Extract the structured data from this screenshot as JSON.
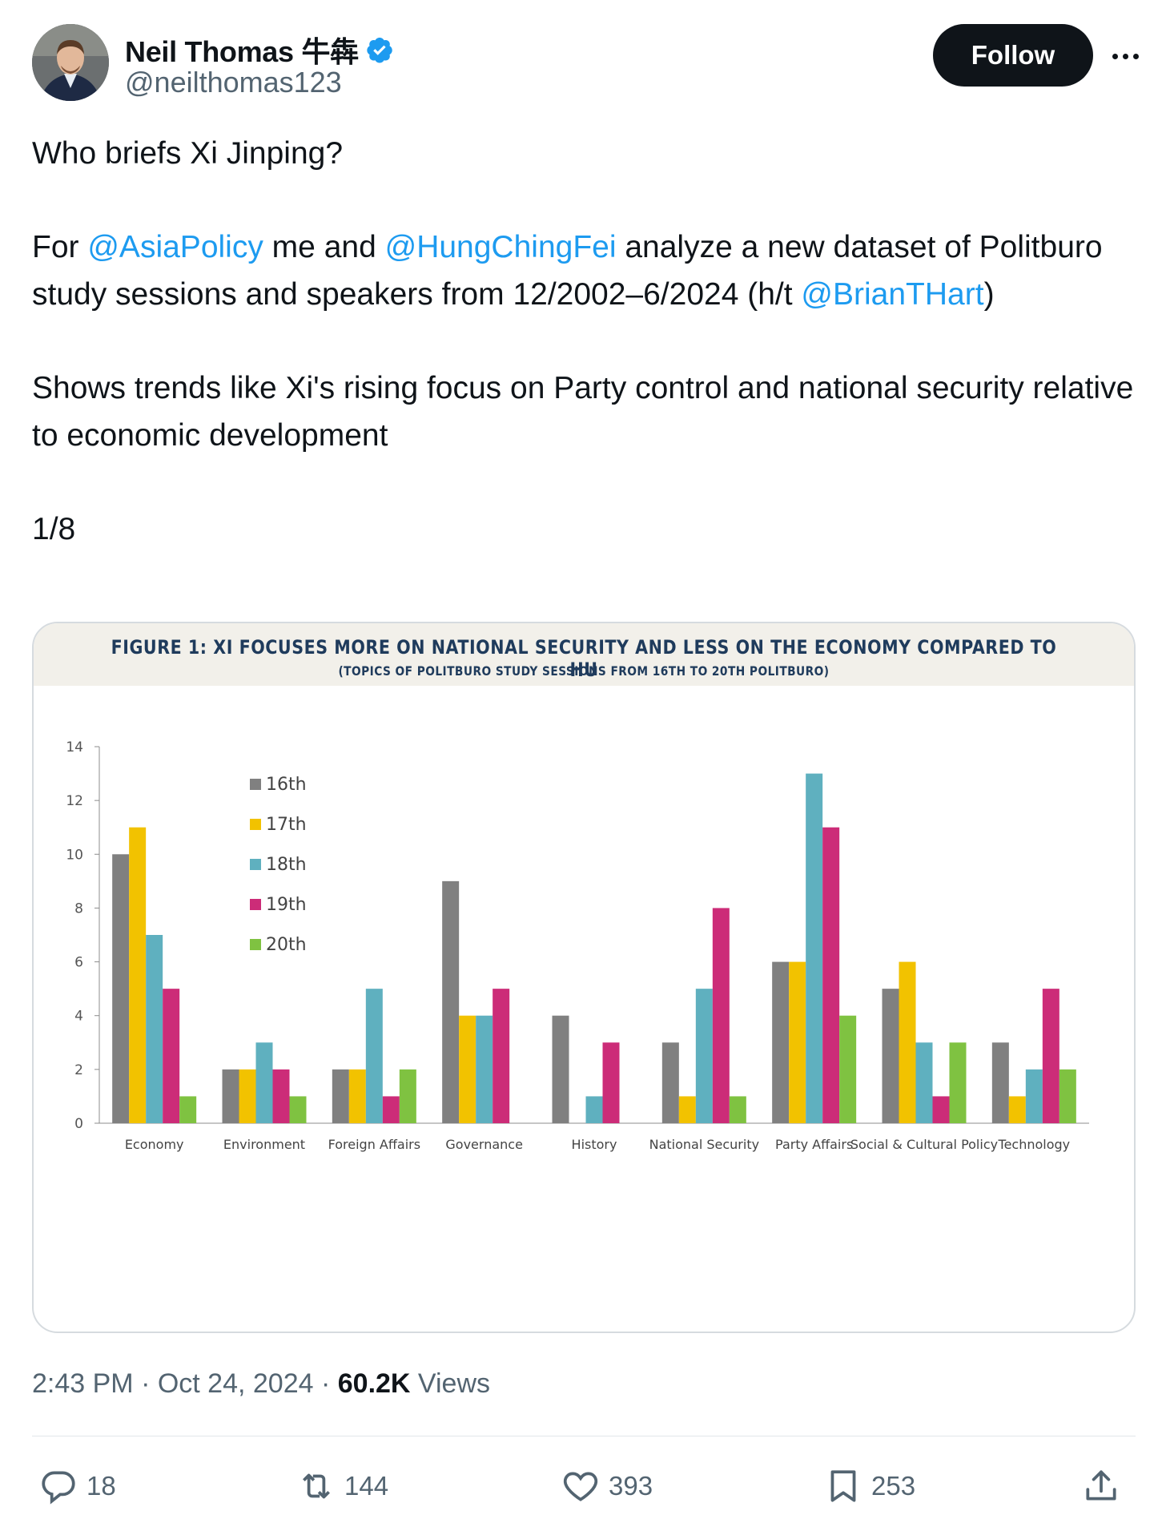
{
  "author": {
    "display_name": "Neil Thomas 牛犇",
    "handle": "@neilthomas123",
    "verified": true
  },
  "follow_label": "Follow",
  "tweet": {
    "line1": "Who briefs Xi Jinping?",
    "p2_for": "For ",
    "mention_asiapolicy": "@AsiaPolicy",
    "p2_mid": " me and ",
    "mention_hungchingfei": "@HungChingFei",
    "p2_rest": " analyze a new dataset of Politburo study sessions and speakers from 12/2002–6/2024 (h/t ",
    "mention_brianthart": "@BrianTHart",
    "p2_close": ")",
    "p3": "Shows trends like Xi's rising focus on Party control and national security relative to economic development",
    "p4": "1/8"
  },
  "figure": {
    "title": "FIGURE 1: XI FOCUSES MORE ON NATIONAL SECURITY AND LESS ON THE ECONOMY COMPARED TO HU",
    "subtitle": "(TOPICS OF POLITBURO STUDY SESSIONS FROM 16TH TO 20TH POLITBURO)"
  },
  "chart_data": {
    "type": "bar",
    "categories": [
      "Economy",
      "Environment",
      "Foreign Affairs",
      "Governance",
      "History",
      "National Security",
      "Party Affairs",
      "Social & Cultural Policy",
      "Technology"
    ],
    "series": [
      {
        "name": "16th",
        "color": "#808080",
        "values": [
          10,
          2,
          2,
          9,
          4,
          3,
          6,
          5,
          3
        ]
      },
      {
        "name": "17th",
        "color": "#f2c200",
        "values": [
          11,
          2,
          2,
          4,
          0,
          1,
          6,
          6,
          1
        ]
      },
      {
        "name": "18th",
        "color": "#5fb0bf",
        "values": [
          7,
          3,
          5,
          4,
          1,
          5,
          13,
          3,
          2
        ]
      },
      {
        "name": "19th",
        "color": "#cc2c78",
        "values": [
          5,
          2,
          1,
          5,
          3,
          8,
          11,
          1,
          5
        ]
      },
      {
        "name": "20th",
        "color": "#7fc241",
        "values": [
          1,
          1,
          2,
          0,
          0,
          1,
          4,
          3,
          2
        ]
      }
    ],
    "ylim": [
      0,
      14
    ],
    "yticks": [
      0,
      2,
      4,
      6,
      8,
      10,
      12,
      14
    ],
    "legend": "top-left",
    "grid": false
  },
  "meta": {
    "time": "2:43 PM",
    "sep1": " · ",
    "date": "Oct 24, 2024",
    "sep2": " · ",
    "views_count": "60.2K",
    "views_label": " Views"
  },
  "actions": {
    "replies": "18",
    "reposts": "144",
    "likes": "393",
    "bookmarks": "253"
  },
  "icons": {
    "verified": "verified-badge-icon",
    "more": "more-icon",
    "reply": "reply-icon",
    "repost": "repost-icon",
    "like": "heart-icon",
    "bookmark": "bookmark-icon",
    "share": "share-icon"
  },
  "colors": {
    "mention": "#1d9bf0",
    "secondary_text": "#536471",
    "follow_bg": "#0f1419"
  }
}
